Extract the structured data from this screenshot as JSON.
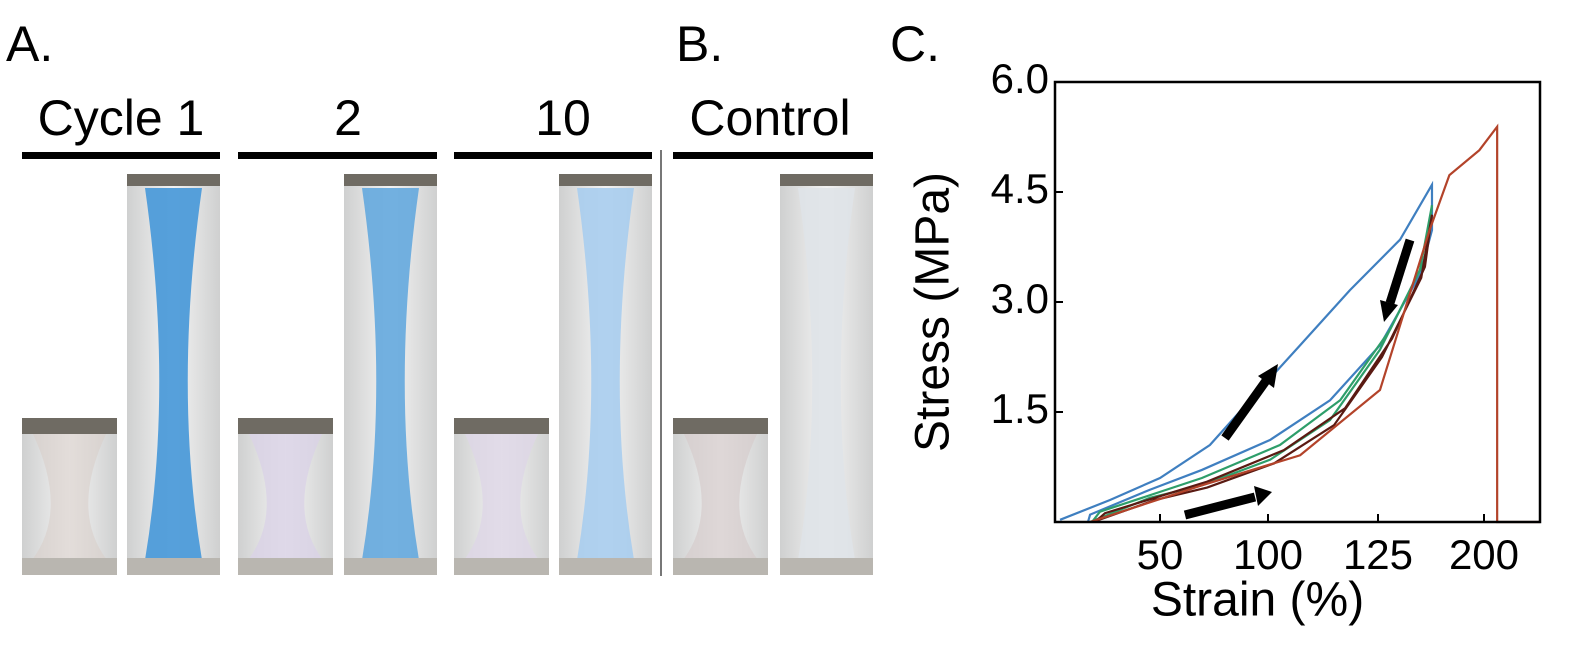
{
  "panels": {
    "a": {
      "label": "A.",
      "headers": [
        "Cycle 1",
        "2",
        "10"
      ]
    },
    "b": {
      "label": "B.",
      "header": "Control"
    },
    "c": {
      "label": "C."
    }
  },
  "chart_data": {
    "type": "line",
    "xlabel": "Strain (%)",
    "ylabel": "Stress (MPa)",
    "xlim": [
      0,
      240
    ],
    "xticks": [
      50,
      100,
      125,
      200
    ],
    "ylim": [
      0,
      6.0
    ],
    "yticks": [
      {
        "value": 1.5,
        "label": "1.5"
      },
      {
        "value": 3.0,
        "label": "3.0"
      },
      {
        "value": 4.5,
        "label": "4.5"
      },
      {
        "value": 6.0,
        "label": "6.0"
      }
    ],
    "series": [
      {
        "color": "#3f7fc0",
        "x": [
          2.4,
          26.2,
          50,
          73.1,
          91.7,
          107.3,
          118.6,
          140.6,
          163.2,
          163.2,
          154.7,
          126.4,
          114.1,
          100.5,
          69.4,
          45.2,
          16.7,
          15.7
        ],
        "y": [
          0.03,
          0.3,
          0.6,
          1.05,
          1.66,
          2.41,
          3.16,
          3.85,
          4.6,
          3.98,
          3.37,
          2.41,
          1.66,
          1.12,
          0.71,
          0.44,
          0.1,
          0
        ]
      },
      {
        "color": "#2e9e6a",
        "x": [
          16.7,
          45.2,
          69.4,
          100.5,
          114.1,
          126.4,
          154.7,
          163.2,
          158.2,
          133.5,
          116.4,
          102.7,
          69.4,
          21.4,
          17.6
        ],
        "y": [
          0,
          0.33,
          0.5,
          0.85,
          1.39,
          2.35,
          3.44,
          4.32,
          3.57,
          2.62,
          1.66,
          1.05,
          0.6,
          0.14,
          0
        ]
      },
      {
        "color": "#5a1a12",
        "x": [
          18.1,
          47.6,
          71.8,
          101.4,
          115.0,
          127.8,
          155.6,
          163.2,
          158.2,
          134.9,
          117.5,
          103.6,
          71.8,
          23.8,
          19.0
        ],
        "y": [
          0,
          0.3,
          0.47,
          0.8,
          1.32,
          2.25,
          3.33,
          4.19,
          3.48,
          2.5,
          1.55,
          0.98,
          0.55,
          0.12,
          0
        ]
      },
      {
        "color": "#b3432a",
        "x": [
          16.7,
          69.4,
          107.3,
          126.4,
          161.5,
          175.5,
          196.7,
          209.4,
          209.4,
          240
        ],
        "y": [
          0,
          0.5,
          0.91,
          1.8,
          3.98,
          4.73,
          5.07,
          5.39,
          0,
          0
        ]
      }
    ]
  }
}
